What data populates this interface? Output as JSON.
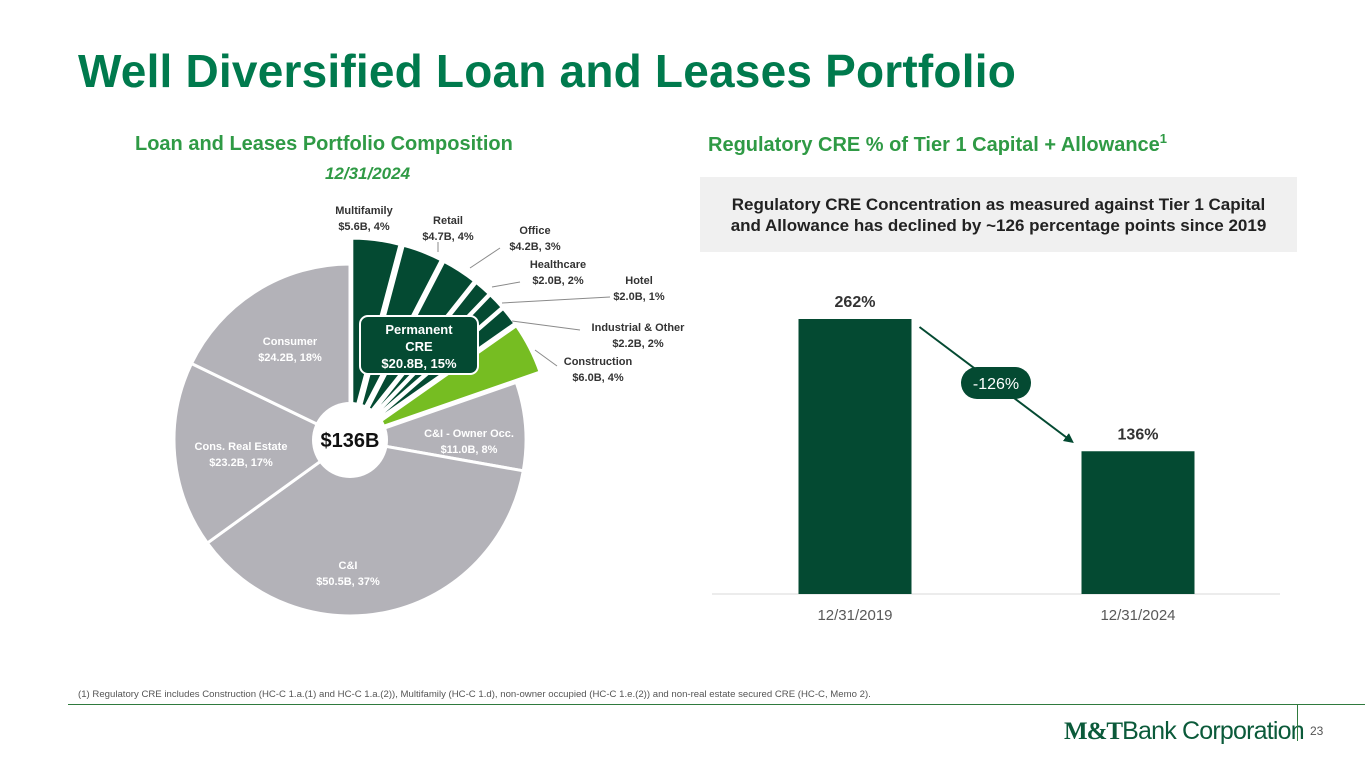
{
  "title": "Well Diversified Loan and Leases Portfolio",
  "left_panel": {
    "title": "Loan and Leases Portfolio Composition",
    "date": "12/31/2024"
  },
  "right_panel": {
    "title": "Regulatory CRE % of Tier 1 Capital + Allowance",
    "title_superscript": "1",
    "callout": "Regulatory CRE Concentration as measured against Tier 1 Capital and Allowance has declined by ~126 percentage points since 2019"
  },
  "footnote": "(1) Regulatory CRE includes Construction (HC-C 1.a.(1) and HC-C 1.a.(2)), Multifamily (HC-C 1.d), non-owner occupied (HC-C 1.e.(2)) and  non-real estate secured CRE (HC-C, Memo 2).",
  "logo": {
    "mark": "M&T",
    "text": "Bank Corporation"
  },
  "page_number": "23",
  "colors": {
    "title_green": "#007a4d",
    "section_green": "#2f9a45",
    "dark_green": "#044a32",
    "lime_green": "#76bd22",
    "gray": "#b3b2b8"
  },
  "chart_data": [
    {
      "type": "pie",
      "center_label": "$136B",
      "unit": "$B",
      "slices": [
        {
          "name": "Multifamily",
          "value_label": "$5.6B, 4%",
          "value": 5.6,
          "group": "permanent_cre",
          "exploded": true
        },
        {
          "name": "Retail",
          "value_label": "$4.7B, 4%",
          "value": 4.7,
          "group": "permanent_cre",
          "exploded": true
        },
        {
          "name": "Office",
          "value_label": "$4.2B, 3%",
          "value": 4.2,
          "group": "permanent_cre",
          "exploded": true
        },
        {
          "name": "Healthcare",
          "value_label": "$2.0B, 2%",
          "value": 2.0,
          "group": "permanent_cre",
          "exploded": true
        },
        {
          "name": "Hotel",
          "value_label": "$2.0B, 1%",
          "value": 2.0,
          "group": "permanent_cre",
          "exploded": true
        },
        {
          "name": "Industrial & Other",
          "value_label": "$2.2B, 2%",
          "value": 2.2,
          "group": "permanent_cre",
          "exploded": true
        },
        {
          "name": "Construction",
          "value_label": "$6.0B, 4%",
          "value": 6.0,
          "group": "construction",
          "exploded": true
        },
        {
          "name": "C&I - Owner Occ.",
          "value_label": "$11.0B, 8%",
          "value": 11.0,
          "group": "other",
          "exploded": false
        },
        {
          "name": "C&I",
          "value_label": "$50.5B, 37%",
          "value": 50.5,
          "group": "other",
          "exploded": false
        },
        {
          "name": "Cons. Real Estate",
          "value_label": "$23.2B, 17%",
          "value": 23.2,
          "group": "other",
          "exploded": false
        },
        {
          "name": "Consumer",
          "value_label": "$24.2B, 18%",
          "value": 24.2,
          "group": "other",
          "exploded": false
        }
      ],
      "group_callout": {
        "lines": [
          "Permanent",
          "CRE",
          "$20.8B, 15%"
        ]
      }
    },
    {
      "type": "bar",
      "categories": [
        "12/31/2019",
        "12/31/2024"
      ],
      "values": [
        262,
        136
      ],
      "value_labels": [
        "262%",
        "136%"
      ],
      "ylim": [
        0,
        262
      ],
      "change_label": "-126%",
      "grid": false
    }
  ]
}
